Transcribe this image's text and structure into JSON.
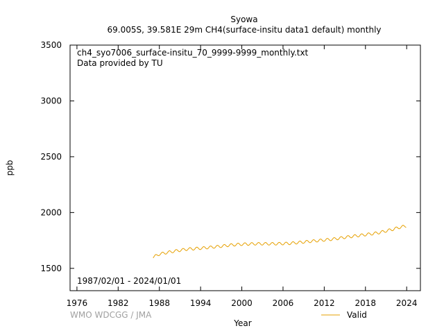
{
  "chart_data": {
    "type": "line",
    "title_line1": "Syowa",
    "title_line2": "69.005S, 39.581E 29m    CH4(surface-insitu data1 default) monthly",
    "xlabel": "Year",
    "ylabel": "ppb",
    "file_label": "ch4_syo7006_surface-insitu_70_9999-9999_monthly.txt",
    "provider_label": "Data provided by TU",
    "date_range_label": "1987/02/01 - 2024/01/01",
    "credit": "WMO WDCGG / JMA",
    "xlim": [
      1975,
      2026
    ],
    "ylim": [
      1300,
      3500
    ],
    "x_ticks": [
      1976,
      1982,
      1988,
      1994,
      2000,
      2006,
      2012,
      2018,
      2024
    ],
    "y_ticks": [
      1500,
      2000,
      2500,
      3000,
      3500
    ],
    "grid": false,
    "legend_position": "bottom-right",
    "series": [
      {
        "name": "Valid",
        "color": "#e6a000",
        "x": [
          1987.1,
          1988,
          1989,
          1990,
          1991,
          1992,
          1993,
          1994,
          1995,
          1996,
          1997,
          1998,
          1999,
          2000,
          2001,
          2002,
          2003,
          2004,
          2005,
          2006,
          2007,
          2008,
          2009,
          2010,
          2011,
          2012,
          2013,
          2014,
          2015,
          2016,
          2017,
          2018,
          2019,
          2020,
          2021,
          2022,
          2023,
          2024
        ],
        "values": [
          1600,
          1628,
          1640,
          1652,
          1662,
          1672,
          1676,
          1680,
          1686,
          1692,
          1698,
          1706,
          1712,
          1716,
          1718,
          1720,
          1720,
          1720,
          1720,
          1722,
          1724,
          1730,
          1736,
          1742,
          1748,
          1754,
          1760,
          1768,
          1778,
          1786,
          1794,
          1802,
          1810,
          1820,
          1835,
          1850,
          1868,
          1880
        ],
        "seasonal_amplitude": 12
      }
    ]
  }
}
